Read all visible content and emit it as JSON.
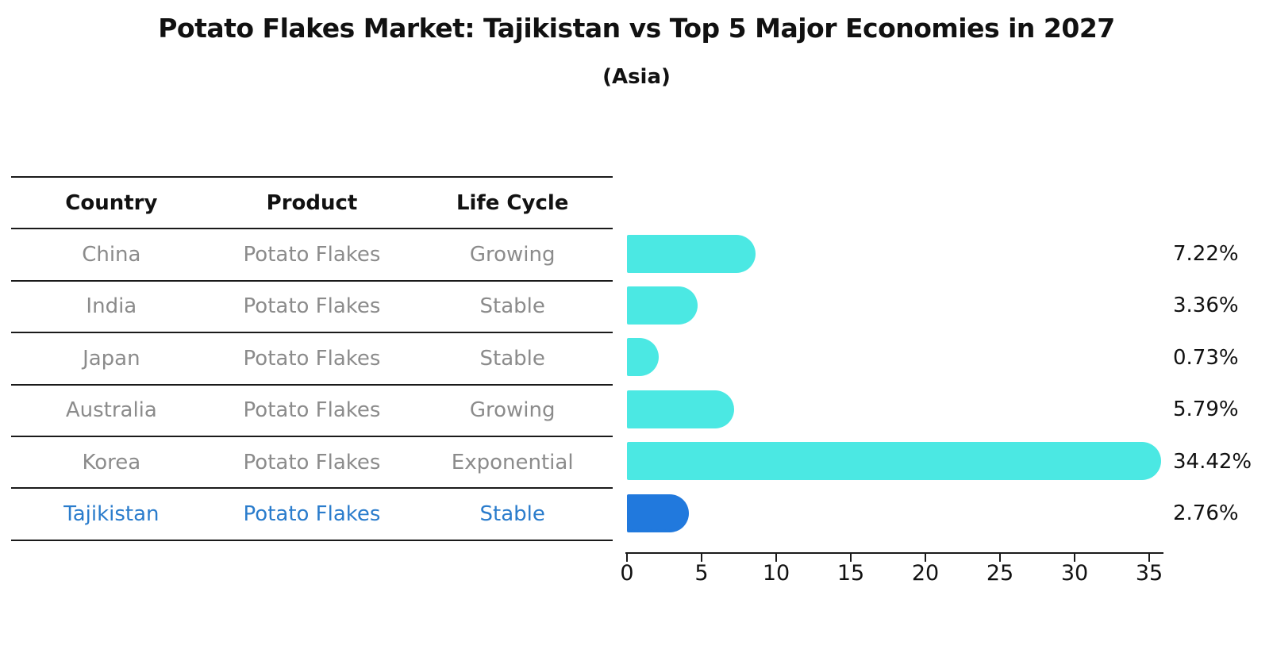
{
  "title": "Potato Flakes Market: Tajikistan vs Top 5 Major Economies in 2027",
  "subtitle": "(Asia)",
  "table": {
    "headers": [
      "Country",
      "Product",
      "Life Cycle"
    ],
    "rows": [
      {
        "country": "China",
        "product": "Potato Flakes",
        "life_cycle": "Growing",
        "highlight": false
      },
      {
        "country": "India",
        "product": "Potato Flakes",
        "life_cycle": "Stable",
        "highlight": false
      },
      {
        "country": "Japan",
        "product": "Potato Flakes",
        "life_cycle": "Stable",
        "highlight": false
      },
      {
        "country": "Australia",
        "product": "Potato Flakes",
        "life_cycle": "Growing",
        "highlight": false
      },
      {
        "country": "Korea",
        "product": "Potato Flakes",
        "life_cycle": "Exponential",
        "highlight": false
      },
      {
        "country": "Tajikistan",
        "product": "Potato Flakes",
        "life_cycle": "Stable",
        "highlight": true
      }
    ]
  },
  "chart_data": {
    "type": "bar",
    "orientation": "horizontal",
    "title": "Potato Flakes Market: Tajikistan vs Top 5 Major Economies in 2027",
    "subtitle": "(Asia)",
    "categories": [
      "China",
      "India",
      "Japan",
      "Australia",
      "Korea",
      "Tajikistan"
    ],
    "values": [
      7.22,
      3.36,
      0.73,
      5.79,
      34.42,
      2.76
    ],
    "value_labels": [
      "7.22%",
      "3.36%",
      "0.73%",
      "5.79%",
      "34.42%",
      "2.76%"
    ],
    "xlim": [
      0,
      35
    ],
    "x_ticks": [
      0,
      5,
      10,
      15,
      20,
      25,
      30,
      35
    ],
    "grid": false,
    "legend": false,
    "bar_color": "#4be8e3",
    "highlight_color": "#2179dd",
    "highlight_index": 5,
    "highlight_edge_style": "dotted"
  },
  "colors": {
    "text_primary": "#111111",
    "text_muted": "#8b8b8b",
    "text_highlight": "#2a7ccc",
    "rule_line": "#1a1a1a"
  }
}
